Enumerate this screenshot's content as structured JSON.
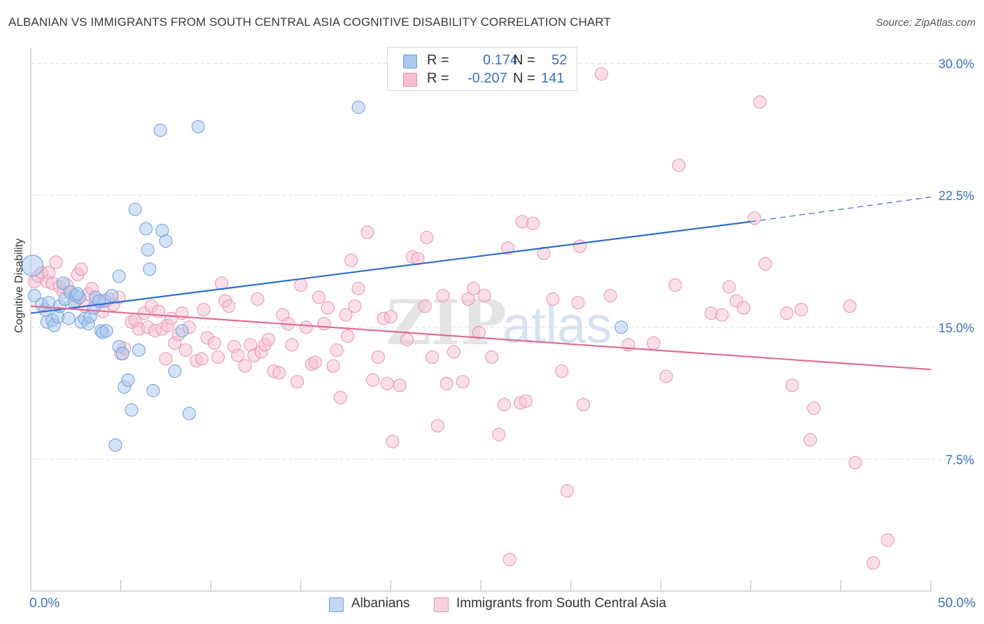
{
  "title": "ALBANIAN VS IMMIGRANTS FROM SOUTH CENTRAL ASIA COGNITIVE DISABILITY CORRELATION CHART",
  "source": "Source: ZipAtlas.com",
  "watermark": {
    "zip": "ZIP",
    "atlas": "atlas"
  },
  "legend": {
    "albanians": {
      "r_label": "R =",
      "r_value": "0.174",
      "n_label": "N =",
      "n_value": "52"
    },
    "immigrants": {
      "r_label": "R =",
      "r_value": "-0.207",
      "n_label": "N =",
      "n_value": "141"
    }
  },
  "bottom_legend": {
    "albanians": "Albanians",
    "immigrants": "Immigrants from South Central Asia"
  },
  "x_ticks": {
    "min": "0.0%",
    "max": "50.0%"
  },
  "colors": {
    "albanians_fill": "#aac8f0",
    "albanians_stroke": "#6f9fd8",
    "albanians_line": "#2f6fcf",
    "immigrants_fill": "#f7bfd1",
    "immigrants_stroke": "#e892b0",
    "immigrants_line": "#e06c98",
    "axis_text": "#3a72c4",
    "grid": "#dddddd"
  },
  "chart_data": {
    "type": "scatter",
    "title": "ALBANIAN VS IMMIGRANTS FROM SOUTH CENTRAL ASIA COGNITIVE DISABILITY CORRELATION CHART",
    "xlabel": "",
    "ylabel": "Cognitive Disability",
    "xlim": [
      0,
      50
    ],
    "ylim": [
      0,
      30.5
    ],
    "y_ticks": [
      7.5,
      15.0,
      22.5,
      30.0
    ],
    "y_tick_labels": [
      "7.5%",
      "15.0%",
      "22.5%",
      "30.0%"
    ],
    "x_tick_labels": [
      "0.0%",
      "50.0%"
    ],
    "grid": "horizontal dashed",
    "legend_position": "top-center",
    "series": [
      {
        "name": "Albanians",
        "r": 0.174,
        "n": 52,
        "trend": {
          "x0": 0,
          "y0": 15.8,
          "x1": 40,
          "y1": 21.0,
          "dashed_to_x": 50,
          "dashed_to_y": 22.4
        },
        "points": [
          [
            0.1,
            18.5
          ],
          [
            0.2,
            16.8
          ],
          [
            0.6,
            16.3
          ],
          [
            0.8,
            16.0
          ],
          [
            0.9,
            15.3
          ],
          [
            1.0,
            16.4
          ],
          [
            1.2,
            15.4
          ],
          [
            1.3,
            15.1
          ],
          [
            1.5,
            15.6
          ],
          [
            1.6,
            16.2
          ],
          [
            1.8,
            17.5
          ],
          [
            1.9,
            16.6
          ],
          [
            2.1,
            15.5
          ],
          [
            2.2,
            17.0
          ],
          [
            2.4,
            16.4
          ],
          [
            2.5,
            16.8
          ],
          [
            2.7,
            16.7
          ],
          [
            2.8,
            15.3
          ],
          [
            3.0,
            15.5
          ],
          [
            3.2,
            15.2
          ],
          [
            3.3,
            15.6
          ],
          [
            3.5,
            16.1
          ],
          [
            3.6,
            16.7
          ],
          [
            3.9,
            14.8
          ],
          [
            4.0,
            14.7
          ],
          [
            4.1,
            16.5
          ],
          [
            4.5,
            16.8
          ],
          [
            4.9,
            17.9
          ],
          [
            4.9,
            13.9
          ],
          [
            5.1,
            13.5
          ],
          [
            5.2,
            11.6
          ],
          [
            5.4,
            12.0
          ],
          [
            5.6,
            10.3
          ],
          [
            5.8,
            21.7
          ],
          [
            6.0,
            13.7
          ],
          [
            6.4,
            20.6
          ],
          [
            6.5,
            19.4
          ],
          [
            6.6,
            18.3
          ],
          [
            6.8,
            11.4
          ],
          [
            7.2,
            26.2
          ],
          [
            7.3,
            20.5
          ],
          [
            7.5,
            19.9
          ],
          [
            8.0,
            12.5
          ],
          [
            8.4,
            14.8
          ],
          [
            8.8,
            10.1
          ],
          [
            9.3,
            26.4
          ],
          [
            4.7,
            8.3
          ],
          [
            18.2,
            27.5
          ],
          [
            32.8,
            15.0
          ],
          [
            2.6,
            16.9
          ],
          [
            3.8,
            16.5
          ],
          [
            4.2,
            14.8
          ]
        ]
      },
      {
        "name": "Immigrants from South Central Asia",
        "r": -0.207,
        "n": 141,
        "trend": {
          "x0": 0,
          "y0": 16.2,
          "x1": 50,
          "y1": 12.6
        },
        "points": [
          [
            0.2,
            17.6
          ],
          [
            0.4,
            17.9
          ],
          [
            0.6,
            18.1
          ],
          [
            0.9,
            17.6
          ],
          [
            1.0,
            18.1
          ],
          [
            1.2,
            17.5
          ],
          [
            1.4,
            18.7
          ],
          [
            1.6,
            17.3
          ],
          [
            1.8,
            17.0
          ],
          [
            2.0,
            17.4
          ],
          [
            2.2,
            17.0
          ],
          [
            2.5,
            16.5
          ],
          [
            2.6,
            18.0
          ],
          [
            2.8,
            18.3
          ],
          [
            3.0,
            16.2
          ],
          [
            3.2,
            16.9
          ],
          [
            3.4,
            17.2
          ],
          [
            3.6,
            16.7
          ],
          [
            3.8,
            16.4
          ],
          [
            4.0,
            15.9
          ],
          [
            4.3,
            16.6
          ],
          [
            4.6,
            16.3
          ],
          [
            4.9,
            16.7
          ],
          [
            5.0,
            13.5
          ],
          [
            5.2,
            13.8
          ],
          [
            5.6,
            15.3
          ],
          [
            5.8,
            15.4
          ],
          [
            6.0,
            14.9
          ],
          [
            6.3,
            15.8
          ],
          [
            6.5,
            15.0
          ],
          [
            6.7,
            16.2
          ],
          [
            6.9,
            14.8
          ],
          [
            7.1,
            15.9
          ],
          [
            7.3,
            14.9
          ],
          [
            7.5,
            13.2
          ],
          [
            7.6,
            15.1
          ],
          [
            7.8,
            15.5
          ],
          [
            8.0,
            14.1
          ],
          [
            8.2,
            14.6
          ],
          [
            8.4,
            15.8
          ],
          [
            8.6,
            13.7
          ],
          [
            8.8,
            15.0
          ],
          [
            9.2,
            13.1
          ],
          [
            9.5,
            13.2
          ],
          [
            9.6,
            16.0
          ],
          [
            9.8,
            14.4
          ],
          [
            10.2,
            14.1
          ],
          [
            10.4,
            13.3
          ],
          [
            10.6,
            17.5
          ],
          [
            10.8,
            16.5
          ],
          [
            11.0,
            16.2
          ],
          [
            11.3,
            13.9
          ],
          [
            11.5,
            13.4
          ],
          [
            11.9,
            12.8
          ],
          [
            12.2,
            14.0
          ],
          [
            12.4,
            13.4
          ],
          [
            12.6,
            16.6
          ],
          [
            12.8,
            13.6
          ],
          [
            13.0,
            14.0
          ],
          [
            13.2,
            14.3
          ],
          [
            13.5,
            12.5
          ],
          [
            13.8,
            12.4
          ],
          [
            14.0,
            15.7
          ],
          [
            14.3,
            15.2
          ],
          [
            14.5,
            14.0
          ],
          [
            14.8,
            11.9
          ],
          [
            15.0,
            17.4
          ],
          [
            15.3,
            15.0
          ],
          [
            15.6,
            12.9
          ],
          [
            15.8,
            13.0
          ],
          [
            16.0,
            16.7
          ],
          [
            16.3,
            15.2
          ],
          [
            16.5,
            16.1
          ],
          [
            16.8,
            12.8
          ],
          [
            17.0,
            13.7
          ],
          [
            17.2,
            11.0
          ],
          [
            17.5,
            15.7
          ],
          [
            17.6,
            14.5
          ],
          [
            17.8,
            18.8
          ],
          [
            18.0,
            16.2
          ],
          [
            18.2,
            17.2
          ],
          [
            18.7,
            20.4
          ],
          [
            19.0,
            12.0
          ],
          [
            19.3,
            13.3
          ],
          [
            19.6,
            15.5
          ],
          [
            19.8,
            11.8
          ],
          [
            20.0,
            15.6
          ],
          [
            20.1,
            8.5
          ],
          [
            20.5,
            11.7
          ],
          [
            20.9,
            14.3
          ],
          [
            21.2,
            19.0
          ],
          [
            21.5,
            18.9
          ],
          [
            21.9,
            16.2
          ],
          [
            22.0,
            20.1
          ],
          [
            22.3,
            13.3
          ],
          [
            22.6,
            9.4
          ],
          [
            22.9,
            16.8
          ],
          [
            23.1,
            11.8
          ],
          [
            23.5,
            13.6
          ],
          [
            24.0,
            11.9
          ],
          [
            24.3,
            16.6
          ],
          [
            24.6,
            17.2
          ],
          [
            24.9,
            14.7
          ],
          [
            25.2,
            16.8
          ],
          [
            25.6,
            13.3
          ],
          [
            26.0,
            8.9
          ],
          [
            26.3,
            10.6
          ],
          [
            26.5,
            19.5
          ],
          [
            26.6,
            1.8
          ],
          [
            27.2,
            10.7
          ],
          [
            27.3,
            21.0
          ],
          [
            27.5,
            10.8
          ],
          [
            27.9,
            20.9
          ],
          [
            28.5,
            19.2
          ],
          [
            29.0,
            16.6
          ],
          [
            29.5,
            12.5
          ],
          [
            29.8,
            5.7
          ],
          [
            30.4,
            16.4
          ],
          [
            30.5,
            19.6
          ],
          [
            30.7,
            10.6
          ],
          [
            31.7,
            29.4
          ],
          [
            32.2,
            16.8
          ],
          [
            33.2,
            14.0
          ],
          [
            34.6,
            14.1
          ],
          [
            35.3,
            12.2
          ],
          [
            35.8,
            17.4
          ],
          [
            36.0,
            24.2
          ],
          [
            37.8,
            15.8
          ],
          [
            38.4,
            15.7
          ],
          [
            38.8,
            17.3
          ],
          [
            39.2,
            16.5
          ],
          [
            39.6,
            16.1
          ],
          [
            40.2,
            21.2
          ],
          [
            40.5,
            27.8
          ],
          [
            40.8,
            18.6
          ],
          [
            42.0,
            15.8
          ],
          [
            42.3,
            11.7
          ],
          [
            42.8,
            16.0
          ],
          [
            43.5,
            10.4
          ],
          [
            45.5,
            16.2
          ],
          [
            45.8,
            7.3
          ],
          [
            46.8,
            1.6
          ],
          [
            47.6,
            2.9
          ],
          [
            43.3,
            8.6
          ]
        ]
      }
    ]
  }
}
